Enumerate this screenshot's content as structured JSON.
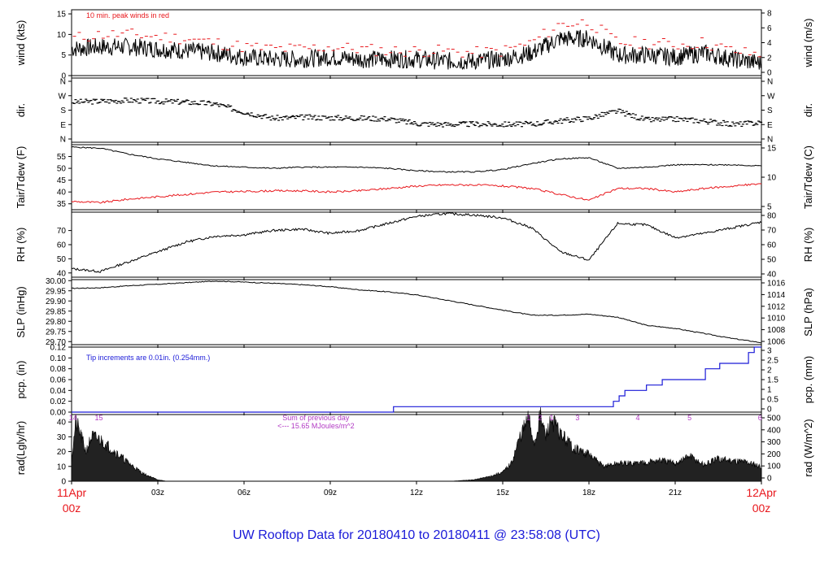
{
  "footer": "UW Rooftop Data for 20180410  to  20180411 @ 23:58:08  (UTC)",
  "colors": {
    "primary": "#000000",
    "accent_red": "#e8171c",
    "precip_blue": "#1a1ad8",
    "rad_purple": "#b23ac4",
    "footer_blue": "#1a1ad8"
  },
  "chart_data": {
    "type": "line",
    "time_axis": {
      "range_hours": [
        0,
        24
      ],
      "tick_hours": [
        0,
        3,
        6,
        9,
        12,
        15,
        18,
        21,
        24
      ],
      "tick_labels": [
        "",
        "03z",
        "06z",
        "09z",
        "12z",
        "15z",
        "18z",
        "21z",
        ""
      ],
      "start_label": [
        "11Apr",
        "00z"
      ],
      "end_label": [
        "12Apr",
        "00z"
      ]
    },
    "panels": [
      {
        "id": "wind",
        "left_label": "wind (kts)",
        "right_label": "wind (m/s)",
        "left_ticks": [
          0,
          5,
          10,
          15
        ],
        "right_ticks": [
          "0",
          "2",
          "4",
          "6",
          "8"
        ],
        "ylim": [
          0,
          16
        ],
        "annotation": "10 min. peak winds in red",
        "series": [
          {
            "x": [
              0,
              1,
              2,
              3,
              4,
              5,
              6,
              7,
              8,
              9,
              10,
              11,
              12,
              13,
              14,
              15,
              16,
              17,
              18,
              19,
              20,
              21,
              22,
              23,
              24
            ],
            "y": [
              6.5,
              7,
              7,
              6.5,
              6,
              5.5,
              4.5,
              4,
              4,
              4.5,
              4,
              4,
              4,
              3.5,
              3.5,
              4,
              5.5,
              9,
              9,
              5,
              5,
              4.5,
              5.5,
              4,
              3
            ]
          },
          {
            "x": [
              0,
              1,
              2,
              3,
              4,
              5,
              6,
              7,
              8,
              9,
              10,
              11,
              12,
              13,
              14,
              15,
              16,
              17,
              18,
              19,
              20,
              21,
              22,
              23,
              24
            ],
            "y": [
              9,
              10,
              10,
              9.5,
              9,
              8,
              7,
              6.5,
              6.5,
              7,
              6.5,
              6,
              6,
              6,
              5.5,
              6,
              8,
              12.5,
              13,
              8,
              8,
              7.5,
              8,
              6,
              5
            ]
          }
        ]
      },
      {
        "id": "dir",
        "left_label": "dir.",
        "right_label": "dir.",
        "left_ticks": [
          "N",
          "E",
          "S",
          "W",
          "N"
        ],
        "right_ticks": [
          "N",
          "E",
          "S",
          "W",
          "N"
        ],
        "ylim": [
          0,
          360
        ],
        "series": [
          {
            "x": [
              0,
              1,
              2,
              3,
              4,
              5,
              6,
              7,
              8,
              9,
              10,
              11,
              12,
              13,
              14,
              15,
              16,
              17,
              18,
              19,
              20,
              21,
              22,
              23,
              24
            ],
            "y": [
              225,
              230,
              235,
              230,
              225,
              215,
              170,
              135,
              140,
              138,
              135,
              132,
              105,
              100,
              102,
              100,
              102,
              120,
              135,
              175,
              125,
              130,
              120,
              100,
              110
            ]
          }
        ]
      },
      {
        "id": "temp",
        "left_label": "Tair/Tdew (F)",
        "right_label": "Tair/Tdew (C)",
        "left_ticks": [
          35,
          40,
          45,
          50,
          55
        ],
        "right_ticks": [
          "5",
          "10",
          "15"
        ],
        "ylim": [
          32.5,
          60
        ],
        "series": [
          {
            "name": "Tair",
            "color": "red_black",
            "x": [
              0,
              1,
              2,
              3,
              4,
              5,
              6,
              7,
              8,
              9,
              10,
              11,
              12,
              13,
              14,
              15,
              16,
              17,
              18,
              19,
              20,
              21,
              22,
              23,
              24
            ],
            "y": [
              59,
              58.5,
              56,
              54,
              52.5,
              51,
              50.5,
              50,
              50.5,
              50.5,
              50.5,
              50,
              49,
              48.5,
              48.5,
              49.5,
              52,
              54,
              54.5,
              50,
              50.5,
              51.5,
              51.5,
              51.5,
              51
            ]
          },
          {
            "name": "Tdew",
            "x": [
              0,
              1,
              2,
              3,
              4,
              5,
              6,
              7,
              8,
              9,
              10,
              11,
              12,
              13,
              14,
              15,
              16,
              17,
              18,
              19,
              20,
              21,
              22,
              23,
              24
            ],
            "y": [
              36,
              35.5,
              37,
              38,
              39,
              40,
              40.2,
              40.5,
              40.5,
              40,
              40.5,
              41.5,
              42.5,
              43,
              43,
              42.5,
              41.5,
              39,
              36.5,
              41.5,
              41.5,
              40,
              41.5,
              42.5,
              43.5
            ]
          }
        ]
      },
      {
        "id": "rh",
        "left_label": "RH (%)",
        "right_label": "RH (%)",
        "left_ticks": [
          40,
          50,
          60,
          70
        ],
        "right_ticks": [
          "40",
          "50",
          "60",
          "70",
          "80"
        ],
        "ylim": [
          37,
          83
        ],
        "series": [
          {
            "x": [
              0,
              1,
              2,
              3,
              4,
              5,
              6,
              7,
              8,
              9,
              10,
              11,
              12,
              13,
              14,
              15,
              16,
              17,
              18,
              19,
              20,
              21,
              22,
              23,
              24
            ],
            "y": [
              43,
              41,
              48,
              55,
              62,
              66,
              67,
              70,
              71,
              68,
              70,
              75,
              80,
              82,
              81,
              79,
              72,
              55,
              49,
              75,
              74,
              65,
              68,
              72,
              76
            ]
          }
        ]
      },
      {
        "id": "slp",
        "left_label": "SLP (inHg)",
        "right_label": "SLP (hPa)",
        "left_ticks": [
          "29.70",
          "29.75",
          "29.80",
          "29.85",
          "29.90",
          "29.95",
          "30.00"
        ],
        "right_ticks": [
          "1006",
          "1008",
          "1010",
          "1012",
          "1014",
          "1016"
        ],
        "ylim": [
          29.685,
          30.005
        ],
        "series": [
          {
            "x": [
              0,
              1,
              2,
              3,
              4,
              5,
              6,
              7,
              8,
              9,
              10,
              11,
              12,
              13,
              14,
              15,
              16,
              17,
              18,
              19,
              20,
              21,
              22,
              23,
              24
            ],
            "y": [
              29.962,
              29.965,
              29.975,
              29.982,
              29.99,
              29.998,
              29.993,
              29.987,
              29.98,
              29.97,
              29.955,
              29.945,
              29.93,
              29.905,
              29.88,
              29.855,
              29.83,
              29.83,
              29.835,
              29.82,
              29.78,
              29.765,
              29.74,
              29.715,
              29.695
            ]
          }
        ]
      },
      {
        "id": "pcp",
        "left_label": "pcp. (in)",
        "right_label": "pcp. (mm)",
        "left_ticks": [
          "0.00",
          "0.02",
          "0.04",
          "0.06",
          "0.08",
          "0.10",
          "0.12"
        ],
        "right_ticks": [
          "0",
          "0.5",
          "1",
          "1.5",
          "2",
          "2.5",
          "3"
        ],
        "ylim": [
          0,
          0.12
        ],
        "annotation": "Tip increments are 0.01in. (0.254mm.)",
        "series": [
          {
            "x": [
              0,
              11,
              11.2,
              18.7,
              18.85,
              19.05,
              19.25,
              20,
              20.55,
              22.05,
              22.55,
              23.55,
              23.75,
              24
            ],
            "y": [
              0,
              0,
              0.01,
              0.01,
              0.02,
              0.03,
              0.04,
              0.05,
              0.06,
              0.08,
              0.09,
              0.11,
              0.12,
              0.12
            ]
          }
        ]
      },
      {
        "id": "rad",
        "left_label": "rad(Lgly/hr)",
        "right_label": "rad (W/m^2)",
        "left_ticks": [
          0,
          10,
          20,
          30,
          40
        ],
        "right_ticks": [
          "0",
          "100",
          "200",
          "300",
          "400",
          "500"
        ],
        "ylim": [
          0,
          45
        ],
        "annotation_lines": [
          "Sum of previous day",
          "<--- 15.65 MJoules/m^2"
        ],
        "top_labels": [
          {
            "hour": 0.05,
            "text": "14"
          },
          {
            "hour": 0.95,
            "text": "15"
          },
          {
            "hour": 15.9,
            "text": "1"
          },
          {
            "hour": 16.3,
            "text": "2"
          },
          {
            "hour": 16.7,
            "text": "1"
          },
          {
            "hour": 17.6,
            "text": "3"
          },
          {
            "hour": 19.7,
            "text": "4"
          },
          {
            "hour": 21.5,
            "text": "5"
          },
          {
            "hour": 23.95,
            "text": "6"
          }
        ],
        "series": [
          {
            "x": [
              0,
              0.15,
              0.3,
              0.5,
              0.7,
              1,
              1.5,
              2,
              2.5,
              3,
              3.3,
              13.2,
              14,
              14.5,
              15,
              15.3,
              15.6,
              15.9,
              16.1,
              16.3,
              16.5,
              16.7,
              17,
              17.5,
              18,
              18.5,
              19,
              19.5,
              20,
              20.5,
              21,
              21.5,
              22,
              22.5,
              23,
              23.5,
              24
            ],
            "y": [
              15,
              40,
              32,
              20,
              30,
              28,
              20,
              12,
              5,
              1,
              0,
              0,
              1,
              3,
              6,
              12,
              30,
              42,
              25,
              44,
              30,
              42,
              32,
              22,
              18,
              10,
              12,
              12,
              13,
              14,
              12,
              17,
              11,
              15,
              14,
              13,
              10
            ]
          }
        ]
      }
    ]
  }
}
